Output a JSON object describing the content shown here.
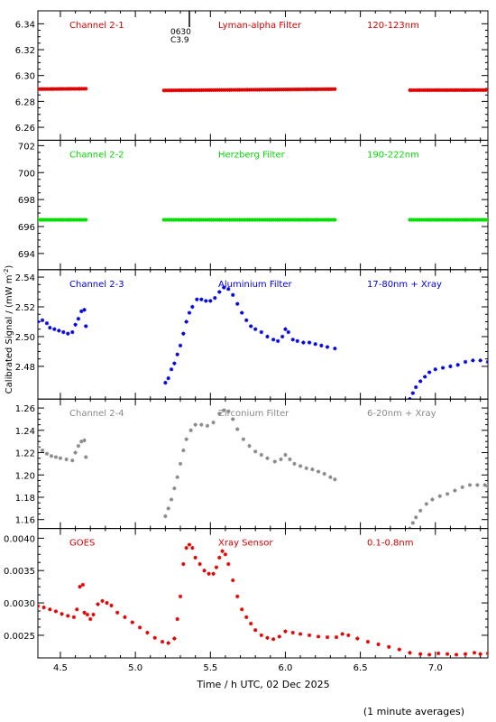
{
  "figure": {
    "ylabel": "Calibrated Signal / (mW m",
    "ylabel_sup": "-2",
    "ylabel_close": ")",
    "xlabel": "Time / h UTC, 02 Dec 2025",
    "note": "(1 minute averages)",
    "marker_text_1": "0630",
    "marker_text_2": "C3.9",
    "marker_x": 5.36
  },
  "chart_data": [
    {
      "type": "scatter",
      "channel": "Channel 2-1",
      "filter": "Lyman-alpha Filter",
      "band": "120-123nm",
      "color": "#dd0000",
      "xlim": [
        4.35,
        7.35
      ],
      "ylim": [
        6.25,
        6.35
      ],
      "yticks": [
        "6.26",
        "6.28",
        "6.30",
        "6.32",
        "6.34"
      ],
      "ytick_values": [
        6.26,
        6.28,
        6.3,
        6.32,
        6.34
      ],
      "segments": [
        {
          "x": [
            4.35,
            4.67
          ],
          "y": [
            6.2895,
            6.2898
          ]
        },
        {
          "x": [
            5.19,
            6.33
          ],
          "y": [
            6.2885,
            6.2895
          ]
        },
        {
          "x": [
            6.83,
            7.35
          ],
          "y": [
            6.2887,
            6.2888
          ]
        }
      ],
      "points": []
    },
    {
      "type": "scatter",
      "channel": "Channel 2-2",
      "filter": "Herzberg Filter",
      "band": "190-222nm",
      "color": "#00dd00",
      "xlim": [
        4.35,
        7.35
      ],
      "ylim": [
        692.8,
        702.4
      ],
      "yticks": [
        "694",
        "696",
        "698",
        "700",
        "702"
      ],
      "ytick_values": [
        694,
        696,
        698,
        700,
        702
      ],
      "segments": [
        {
          "x": [
            4.35,
            4.67
          ],
          "y": [
            696.5,
            696.5
          ]
        },
        {
          "x": [
            5.19,
            6.33
          ],
          "y": [
            696.5,
            696.5
          ]
        },
        {
          "x": [
            6.83,
            7.35
          ],
          "y": [
            696.5,
            696.5
          ]
        }
      ],
      "points": []
    },
    {
      "type": "scatter",
      "channel": "Channel 2-3",
      "filter": "Aluminium Filter",
      "band": "17-80nm + Xray",
      "color": "#0000dd",
      "xlim": [
        4.35,
        7.35
      ],
      "ylim": [
        2.458,
        2.545
      ],
      "yticks": [
        "2.48",
        "2.50",
        "2.52",
        "2.54"
      ],
      "ytick_values": [
        2.48,
        2.5,
        2.52,
        2.54
      ],
      "segments": [],
      "points": [
        [
          4.35,
          2.51
        ],
        [
          4.38,
          2.511
        ],
        [
          4.41,
          2.509
        ],
        [
          4.43,
          2.506
        ],
        [
          4.46,
          2.505
        ],
        [
          4.49,
          2.504
        ],
        [
          4.52,
          2.503
        ],
        [
          4.55,
          2.502
        ],
        [
          4.58,
          2.503
        ],
        [
          4.6,
          2.508
        ],
        [
          4.62,
          2.512
        ],
        [
          4.64,
          2.517
        ],
        [
          4.66,
          2.518
        ],
        [
          4.67,
          2.507
        ],
        [
          5.2,
          2.469
        ],
        [
          5.22,
          2.472
        ],
        [
          5.24,
          2.478
        ],
        [
          5.26,
          2.482
        ],
        [
          5.28,
          2.488
        ],
        [
          5.3,
          2.494
        ],
        [
          5.32,
          2.502
        ],
        [
          5.34,
          2.51
        ],
        [
          5.36,
          2.516
        ],
        [
          5.38,
          2.52
        ],
        [
          5.41,
          2.525
        ],
        [
          5.44,
          2.525
        ],
        [
          5.47,
          2.524
        ],
        [
          5.5,
          2.524
        ],
        [
          5.53,
          2.526
        ],
        [
          5.56,
          2.53
        ],
        [
          5.59,
          2.533
        ],
        [
          5.62,
          2.532
        ],
        [
          5.65,
          2.528
        ],
        [
          5.68,
          2.522
        ],
        [
          5.71,
          2.516
        ],
        [
          5.74,
          2.511
        ],
        [
          5.77,
          2.507
        ],
        [
          5.8,
          2.505
        ],
        [
          5.84,
          2.503
        ],
        [
          5.88,
          2.5
        ],
        [
          5.92,
          2.498
        ],
        [
          5.95,
          2.497
        ],
        [
          5.98,
          2.5
        ],
        [
          6.0,
          2.505
        ],
        [
          6.02,
          2.503
        ],
        [
          6.05,
          2.498
        ],
        [
          6.08,
          2.497
        ],
        [
          6.12,
          2.496
        ],
        [
          6.16,
          2.496
        ],
        [
          6.2,
          2.495
        ],
        [
          6.24,
          2.494
        ],
        [
          6.28,
          2.493
        ],
        [
          6.33,
          2.492
        ],
        [
          6.83,
          2.458
        ],
        [
          6.85,
          2.462
        ],
        [
          6.87,
          2.466
        ],
        [
          6.9,
          2.47
        ],
        [
          6.93,
          2.473
        ],
        [
          6.96,
          2.476
        ],
        [
          7.0,
          2.478
        ],
        [
          7.05,
          2.479
        ],
        [
          7.1,
          2.48
        ],
        [
          7.15,
          2.481
        ],
        [
          7.2,
          2.483
        ],
        [
          7.25,
          2.484
        ],
        [
          7.3,
          2.484
        ],
        [
          7.35,
          2.483
        ]
      ]
    },
    {
      "type": "scatter",
      "channel": "Channel 2-4",
      "filter": "Zirconium Filter",
      "band": "6-20nm + Xray",
      "color": "#888888",
      "xlim": [
        4.35,
        7.35
      ],
      "ylim": [
        1.152,
        1.268
      ],
      "yticks": [
        "1.16",
        "1.18",
        "1.20",
        "1.22",
        "1.24",
        "1.26"
      ],
      "ytick_values": [
        1.16,
        1.18,
        1.2,
        1.22,
        1.24,
        1.26
      ],
      "segments": [],
      "points": [
        [
          4.35,
          1.225
        ],
        [
          4.38,
          1.222
        ],
        [
          4.41,
          1.219
        ],
        [
          4.44,
          1.217
        ],
        [
          4.47,
          1.216
        ],
        [
          4.5,
          1.215
        ],
        [
          4.54,
          1.214
        ],
        [
          4.58,
          1.213
        ],
        [
          4.6,
          1.22
        ],
        [
          4.62,
          1.226
        ],
        [
          4.64,
          1.23
        ],
        [
          4.66,
          1.231
        ],
        [
          4.67,
          1.216
        ],
        [
          5.2,
          1.163
        ],
        [
          5.22,
          1.17
        ],
        [
          5.24,
          1.178
        ],
        [
          5.26,
          1.188
        ],
        [
          5.28,
          1.198
        ],
        [
          5.3,
          1.21
        ],
        [
          5.32,
          1.222
        ],
        [
          5.34,
          1.232
        ],
        [
          5.37,
          1.24
        ],
        [
          5.4,
          1.245
        ],
        [
          5.44,
          1.245
        ],
        [
          5.48,
          1.244
        ],
        [
          5.52,
          1.247
        ],
        [
          5.56,
          1.255
        ],
        [
          5.59,
          1.258
        ],
        [
          5.62,
          1.257
        ],
        [
          5.65,
          1.25
        ],
        [
          5.68,
          1.241
        ],
        [
          5.72,
          1.232
        ],
        [
          5.76,
          1.226
        ],
        [
          5.8,
          1.221
        ],
        [
          5.84,
          1.218
        ],
        [
          5.88,
          1.215
        ],
        [
          5.93,
          1.212
        ],
        [
          5.97,
          1.214
        ],
        [
          6.0,
          1.218
        ],
        [
          6.03,
          1.214
        ],
        [
          6.06,
          1.21
        ],
        [
          6.1,
          1.208
        ],
        [
          6.14,
          1.206
        ],
        [
          6.18,
          1.205
        ],
        [
          6.22,
          1.203
        ],
        [
          6.26,
          1.201
        ],
        [
          6.3,
          1.198
        ],
        [
          6.33,
          1.196
        ],
        [
          6.83,
          1.152
        ],
        [
          6.85,
          1.157
        ],
        [
          6.87,
          1.162
        ],
        [
          6.9,
          1.168
        ],
        [
          6.94,
          1.174
        ],
        [
          6.98,
          1.178
        ],
        [
          7.03,
          1.181
        ],
        [
          7.08,
          1.183
        ],
        [
          7.13,
          1.186
        ],
        [
          7.18,
          1.189
        ],
        [
          7.23,
          1.191
        ],
        [
          7.28,
          1.191
        ],
        [
          7.33,
          1.191
        ],
        [
          7.35,
          1.19
        ]
      ]
    },
    {
      "type": "scatter",
      "channel": "GOES",
      "filter": "Xray Sensor",
      "band": "0.1-0.8nm",
      "color": "#dd0000",
      "xlim": [
        4.35,
        7.35
      ],
      "ylim": [
        0.00215,
        0.00415
      ],
      "yticks": [
        "0.0025",
        "0.0030",
        "0.0035",
        "0.0040"
      ],
      "ytick_values": [
        0.0025,
        0.003,
        0.0035,
        0.004
      ],
      "segments": [],
      "points": [
        [
          4.35,
          0.00295
        ],
        [
          4.39,
          0.00293
        ],
        [
          4.43,
          0.0029
        ],
        [
          4.47,
          0.00287
        ],
        [
          4.51,
          0.00283
        ],
        [
          4.55,
          0.0028
        ],
        [
          4.59,
          0.00278
        ],
        [
          4.61,
          0.0029
        ],
        [
          4.63,
          0.00325
        ],
        [
          4.65,
          0.00328
        ],
        [
          4.66,
          0.00285
        ],
        [
          4.68,
          0.00282
        ],
        [
          4.7,
          0.00275
        ],
        [
          4.72,
          0.00282
        ],
        [
          4.75,
          0.00298
        ],
        [
          4.78,
          0.00303
        ],
        [
          4.81,
          0.003
        ],
        [
          4.84,
          0.00296
        ],
        [
          4.88,
          0.00285
        ],
        [
          4.93,
          0.00278
        ],
        [
          4.98,
          0.0027
        ],
        [
          5.03,
          0.00262
        ],
        [
          5.08,
          0.00254
        ],
        [
          5.13,
          0.00246
        ],
        [
          5.18,
          0.0024
        ],
        [
          5.22,
          0.00238
        ],
        [
          5.26,
          0.00245
        ],
        [
          5.28,
          0.00275
        ],
        [
          5.3,
          0.0031
        ],
        [
          5.32,
          0.0036
        ],
        [
          5.34,
          0.00385
        ],
        [
          5.36,
          0.0039
        ],
        [
          5.38,
          0.00385
        ],
        [
          5.4,
          0.0037
        ],
        [
          5.43,
          0.0036
        ],
        [
          5.46,
          0.0035
        ],
        [
          5.49,
          0.00345
        ],
        [
          5.52,
          0.00345
        ],
        [
          5.54,
          0.00355
        ],
        [
          5.56,
          0.0037
        ],
        [
          5.58,
          0.0038
        ],
        [
          5.6,
          0.00375
        ],
        [
          5.62,
          0.0036
        ],
        [
          5.65,
          0.00335
        ],
        [
          5.68,
          0.0031
        ],
        [
          5.71,
          0.0029
        ],
        [
          5.74,
          0.00278
        ],
        [
          5.77,
          0.00268
        ],
        [
          5.8,
          0.00258
        ],
        [
          5.84,
          0.0025
        ],
        [
          5.88,
          0.00246
        ],
        [
          5.92,
          0.00244
        ],
        [
          5.96,
          0.00248
        ],
        [
          6.0,
          0.00256
        ],
        [
          6.05,
          0.00254
        ],
        [
          6.1,
          0.00252
        ],
        [
          6.16,
          0.0025
        ],
        [
          6.22,
          0.00248
        ],
        [
          6.28,
          0.00247
        ],
        [
          6.34,
          0.00247
        ],
        [
          6.38,
          0.00252
        ],
        [
          6.42,
          0.0025
        ],
        [
          6.48,
          0.00245
        ],
        [
          6.55,
          0.0024
        ],
        [
          6.62,
          0.00236
        ],
        [
          6.69,
          0.00232
        ],
        [
          6.76,
          0.00228
        ],
        [
          6.83,
          0.00223
        ],
        [
          6.9,
          0.00221
        ],
        [
          6.96,
          0.0022
        ],
        [
          7.02,
          0.00222
        ],
        [
          7.08,
          0.00221
        ],
        [
          7.14,
          0.0022
        ],
        [
          7.2,
          0.00221
        ],
        [
          7.26,
          0.00223
        ],
        [
          7.3,
          0.00221
        ],
        [
          7.35,
          0.00222
        ]
      ]
    }
  ],
  "xaxis": {
    "ticks": [
      "4.5",
      "5.0",
      "5.5",
      "6.0",
      "6.5",
      "7.0"
    ],
    "tick_values": [
      4.5,
      5.0,
      5.5,
      6.0,
      6.5,
      7.0
    ]
  }
}
